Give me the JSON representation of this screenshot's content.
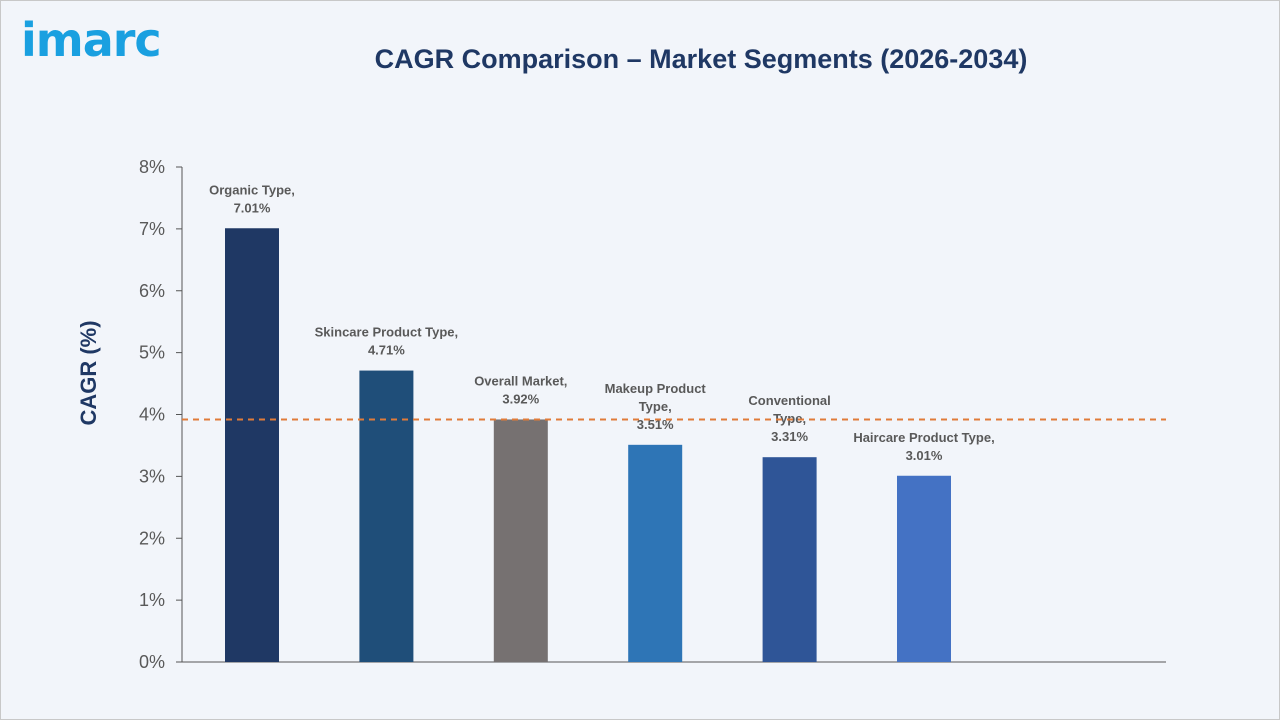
{
  "logo": {
    "text": "imarc",
    "color": "#1aa0e0"
  },
  "colors": {
    "title": "#1f3864",
    "axis": "#555555",
    "text": "#595959",
    "reference": "#e07b39"
  },
  "chart_data": {
    "type": "bar",
    "title": "CAGR Comparison – Market Segments (2026-2034)",
    "xlabel": "",
    "ylabel": "CAGR (%)",
    "ylim": [
      0,
      8
    ],
    "yticks": [
      0,
      1,
      2,
      3,
      4,
      5,
      6,
      7,
      8
    ],
    "ytick_labels": [
      "0%",
      "1%",
      "2%",
      "3%",
      "4%",
      "5%",
      "6%",
      "7%",
      "8%"
    ],
    "grid": false,
    "legend": "none",
    "reference_line": {
      "value": 3.92,
      "style": "dashed",
      "color": "#e07b39"
    },
    "categories": [
      "Organic Type",
      "Skincare Product Type",
      "Overall Market",
      "Makeup Product Type",
      "Conventional Type",
      "Haircare Product Type"
    ],
    "values": [
      7.01,
      4.71,
      3.92,
      3.51,
      3.31,
      3.01
    ],
    "data_labels": [
      [
        "Organic Type,",
        "7.01%"
      ],
      [
        "Skincare Product Type,",
        "4.71%"
      ],
      [
        "Overall Market,",
        "3.92%"
      ],
      [
        "Makeup Product",
        "Type,",
        "3.51%"
      ],
      [
        "Conventional",
        "Type,",
        "3.31%"
      ],
      [
        "Haircare Product Type,",
        "3.01%"
      ]
    ],
    "bar_colors": [
      "#1f3864",
      "#1f4e79",
      "#767171",
      "#2e75b6",
      "#2f5597",
      "#4472c4"
    ]
  }
}
